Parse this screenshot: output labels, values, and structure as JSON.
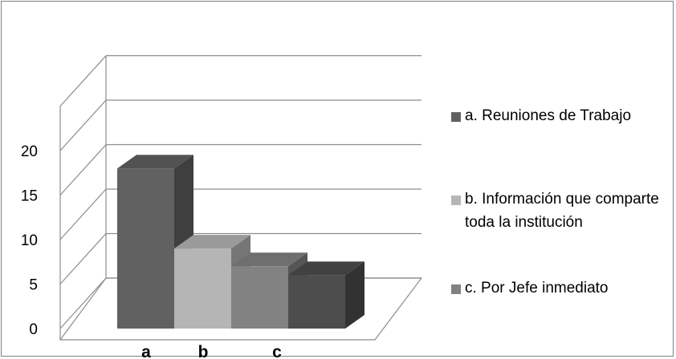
{
  "chart_data": {
    "type": "bar",
    "title": "",
    "xlabel": "",
    "ylabel": "",
    "categories": [
      "a",
      "b",
      "c"
    ],
    "series": [
      {
        "name": "a. Reuniones de Trabajo",
        "category": "a",
        "value": 18,
        "color": "#616161"
      },
      {
        "name": "b. Información que comparte toda la institución",
        "category": "b",
        "value": 9,
        "color": "#b5b5b5"
      },
      {
        "name": "c. Por Jefe inmediato",
        "category": "b",
        "value": 7,
        "color": "#828282"
      },
      {
        "name": "",
        "category": "c",
        "value": 6,
        "color": "#4d4d4d"
      }
    ],
    "ylim": [
      0,
      20
    ],
    "yticks": [
      0,
      5,
      10,
      15,
      20
    ],
    "grid": true,
    "legend_position": "right",
    "style": "3d-column"
  }
}
